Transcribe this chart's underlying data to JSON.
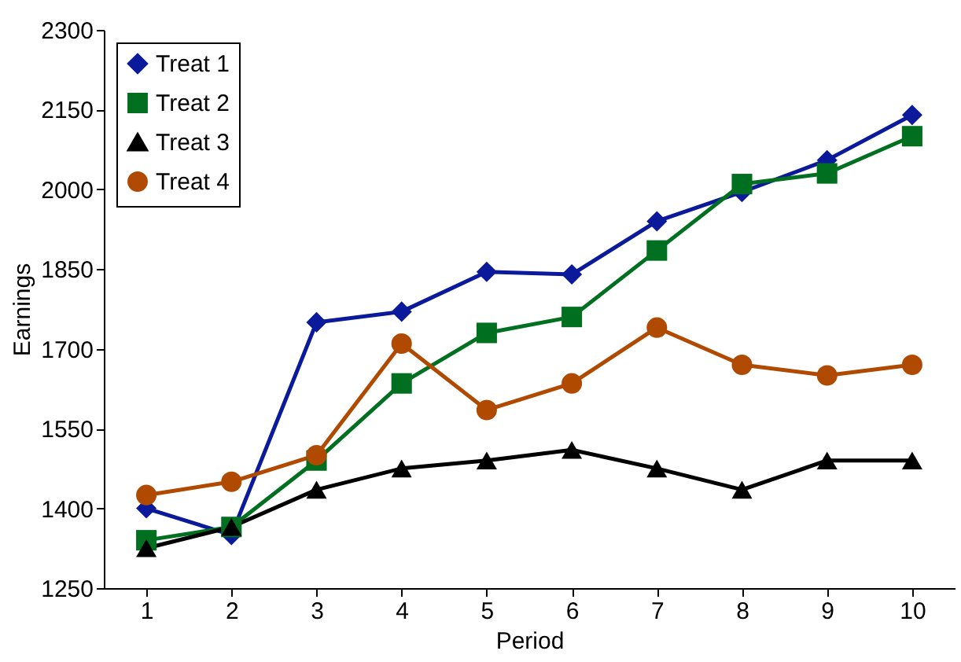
{
  "chart_data": {
    "type": "line",
    "xlabel": "Period",
    "ylabel": "Earnings",
    "categories": [
      "1",
      "2",
      "3",
      "4",
      "5",
      "6",
      "7",
      "8",
      "9",
      "10"
    ],
    "series": [
      {
        "name": "Treat 1",
        "color": "#0a1a9a",
        "marker": "diamond",
        "values": [
          1400,
          1350,
          1750,
          1770,
          1845,
          1840,
          1940,
          1995,
          2055,
          2140
        ]
      },
      {
        "name": "Treat 2",
        "color": "#007020",
        "marker": "square",
        "values": [
          1340,
          1365,
          1490,
          1635,
          1730,
          1760,
          1885,
          2010,
          2030,
          2100
        ]
      },
      {
        "name": "Treat 3",
        "color": "#000000",
        "marker": "triangle",
        "values": [
          1325,
          1365,
          1435,
          1475,
          1490,
          1510,
          1475,
          1435,
          1490,
          1490
        ]
      },
      {
        "name": "Treat 4",
        "color": "#b04a00",
        "marker": "circle",
        "values": [
          1425,
          1450,
          1500,
          1710,
          1585,
          1635,
          1740,
          1670,
          1650,
          1670
        ]
      }
    ],
    "ylim": [
      1250,
      2300
    ],
    "yticks": [
      1250,
      1400,
      1550,
      1700,
      1850,
      2000,
      2150,
      2300
    ],
    "grid": false,
    "legend": "top left",
    "line_style": "solid"
  }
}
